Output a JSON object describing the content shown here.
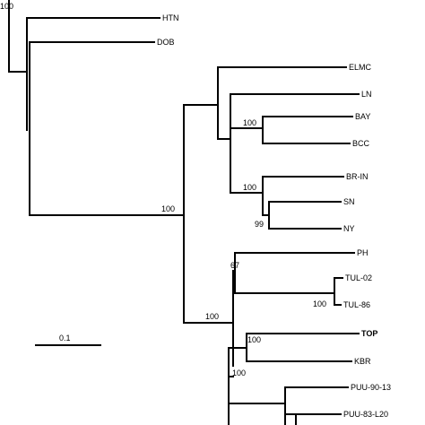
{
  "tree": {
    "taxa": {
      "htn": "HTN",
      "dob": "DOB",
      "elmc": "ELMC",
      "ln": "LN",
      "bay": "BAY",
      "bcc": "BCC",
      "br_in": "BR-IN",
      "sn": "SN",
      "ny": "NY",
      "ph": "PH",
      "tul02": "TUL-02",
      "tul86": "TUL-86",
      "top": "TOP",
      "kbr": "KBR",
      "puu9013": "PUU-90-13",
      "puu83": "PUU-83-L20"
    },
    "bootstrap": {
      "root": "100",
      "main": "100",
      "bay_bcc": "100",
      "br_in_clade": "100",
      "sn_ny": "99",
      "ph_clade": "67",
      "lower_clade": "100",
      "tul": "100",
      "top_kbr": "100",
      "puu_clade": "100"
    },
    "scale_bar": {
      "label": "0.1"
    },
    "line_color": "#000000"
  }
}
